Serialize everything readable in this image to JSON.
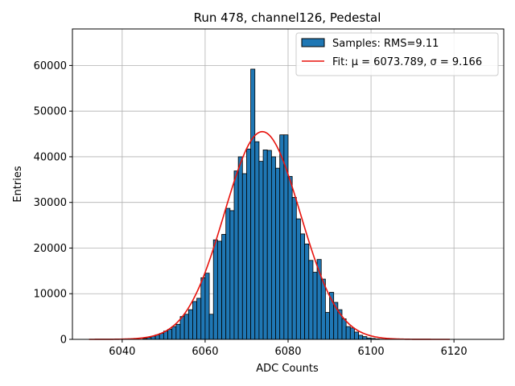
{
  "chart_data": {
    "type": "bar",
    "title": "Run 478, channel126, Pedestal",
    "xlabel": "ADC Counts",
    "ylabel": "Entries",
    "xlim": [
      6028,
      6132
    ],
    "ylim": [
      0,
      68000
    ],
    "xticks": [
      6040,
      6060,
      6080,
      6100,
      6120
    ],
    "yticks": [
      0,
      10000,
      20000,
      30000,
      40000,
      50000,
      60000
    ],
    "grid": true,
    "legend_position": "top-right",
    "colors": {
      "bar_fill": "#1f77b4",
      "bar_edge": "#000000",
      "fit_line": "#e8120c",
      "grid": "#b0b0b0"
    },
    "histogram": {
      "name": "Samples: RMS=9.11",
      "bin_width": 1,
      "bins_start": [
        6045,
        6046,
        6047,
        6048,
        6049,
        6050,
        6051,
        6052,
        6053,
        6054,
        6055,
        6056,
        6057,
        6058,
        6059,
        6060,
        6061,
        6062,
        6063,
        6064,
        6065,
        6066,
        6067,
        6068,
        6069,
        6070,
        6071,
        6072,
        6073,
        6074,
        6075,
        6076,
        6077,
        6078,
        6079,
        6080,
        6081,
        6082,
        6083,
        6084,
        6085,
        6086,
        6087,
        6088,
        6089,
        6090,
        6091,
        6092,
        6093,
        6094,
        6095,
        6096,
        6097,
        6098,
        6099,
        6100,
        6101,
        6102
      ],
      "counts": [
        200,
        400,
        700,
        1000,
        1300,
        1800,
        2200,
        2800,
        3300,
        5000,
        5500,
        6500,
        8300,
        9000,
        13500,
        14500,
        5500,
        21800,
        21500,
        23000,
        28700,
        28200,
        36900,
        40000,
        36300,
        41700,
        59200,
        43300,
        39000,
        41500,
        41400,
        40000,
        37500,
        44800,
        44800,
        35700,
        31100,
        26400,
        23100,
        20900,
        17300,
        14700,
        17500,
        13200,
        5900,
        10300,
        8100,
        6500,
        4500,
        2800,
        2500,
        1600,
        900,
        600,
        300,
        200,
        100,
        50
      ]
    },
    "fit": {
      "name": "Fit: μ = 6073.789, σ = 9.166",
      "mu": 6073.789,
      "sigma": 9.166,
      "amplitude": 45500,
      "x_range": [
        6032,
        6119
      ]
    }
  }
}
